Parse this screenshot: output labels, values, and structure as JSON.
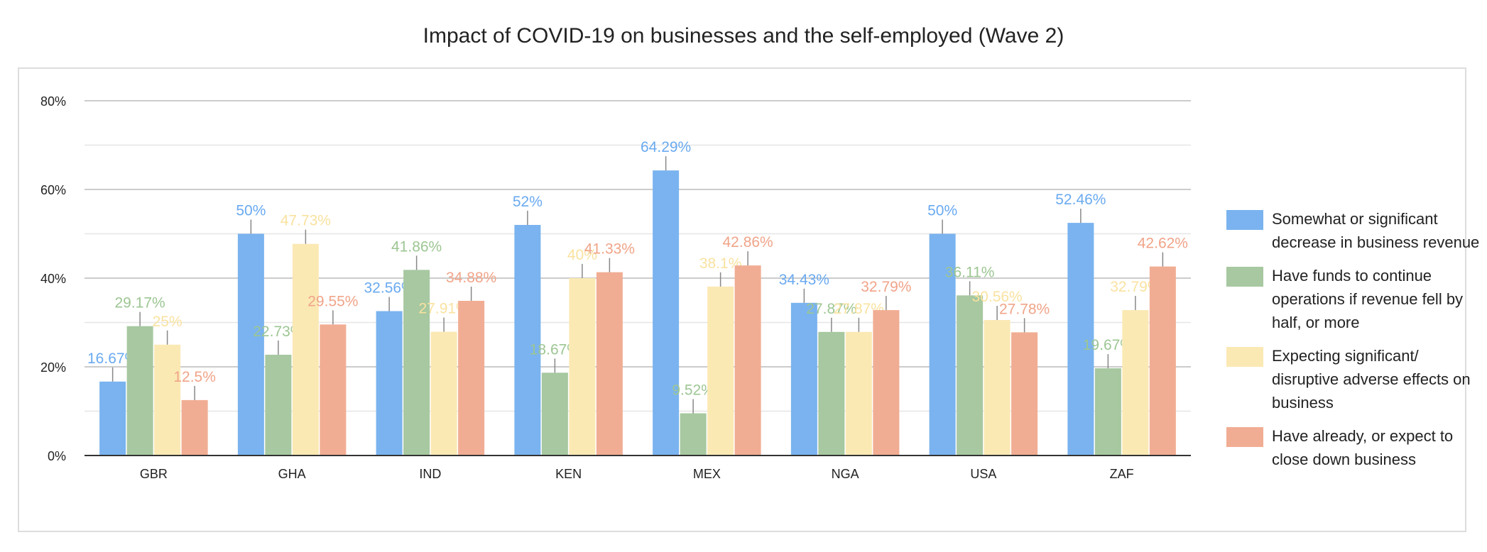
{
  "chart_data": {
    "type": "bar",
    "title": "Impact of COVID-19 on businesses and the self-employed (Wave 2)",
    "xlabel": "",
    "ylabel": "",
    "categories": [
      "GBR",
      "GHA",
      "IND",
      "KEN",
      "MEX",
      "NGA",
      "USA",
      "ZAF"
    ],
    "ylim": [
      0,
      80
    ],
    "yticks": [
      "0%",
      "20%",
      "40%",
      "60%",
      "80%"
    ],
    "ytick_values": [
      0,
      20,
      40,
      60,
      80
    ],
    "grid": true,
    "legend_position": "right",
    "error_bars": true,
    "series": [
      {
        "name": "Somewhat or significant decrease in business revenue",
        "color": "#7ab3ef",
        "label_color": "#6aaaf0",
        "values": [
          16.67,
          50,
          32.56,
          52,
          64.29,
          34.43,
          50,
          52.46
        ],
        "labels": [
          "16.67%",
          "50%",
          "32.56%",
          "52%",
          "64.29%",
          "34.43%",
          "50%",
          "52.46%"
        ]
      },
      {
        "name": "Have funds to continue operations if revenue fell by half, or more",
        "color": "#a7c8a0",
        "label_color": "#9dc693",
        "values": [
          29.17,
          22.73,
          41.86,
          18.67,
          9.52,
          27.87,
          36.11,
          19.67
        ],
        "labels": [
          "29.17%",
          "22.73%",
          "41.86%",
          "18.67%",
          "9.52%",
          "27.87%",
          "36.11%",
          "19.67%"
        ]
      },
      {
        "name": "Expecting significant/ disruptive adverse effects on business",
        "color": "#fbe9b4",
        "label_color": "#f9e2a0",
        "values": [
          25,
          47.73,
          27.91,
          40,
          38.1,
          27.87,
          30.56,
          32.79
        ],
        "labels": [
          "25%",
          "47.73%",
          "27.91%",
          "40%",
          "38.1%",
          "27.87%",
          "30.56%",
          "32.79%"
        ]
      },
      {
        "name": "Have already, or expect to close down business",
        "color": "#f1ad93",
        "label_color": "#f0a489",
        "values": [
          12.5,
          29.55,
          34.88,
          41.33,
          42.86,
          32.79,
          27.78,
          42.62
        ],
        "labels": [
          "12.5%",
          "29.55%",
          "34.88%",
          "41.33%",
          "42.86%",
          "32.79%",
          "27.78%",
          "42.62%"
        ]
      }
    ]
  }
}
